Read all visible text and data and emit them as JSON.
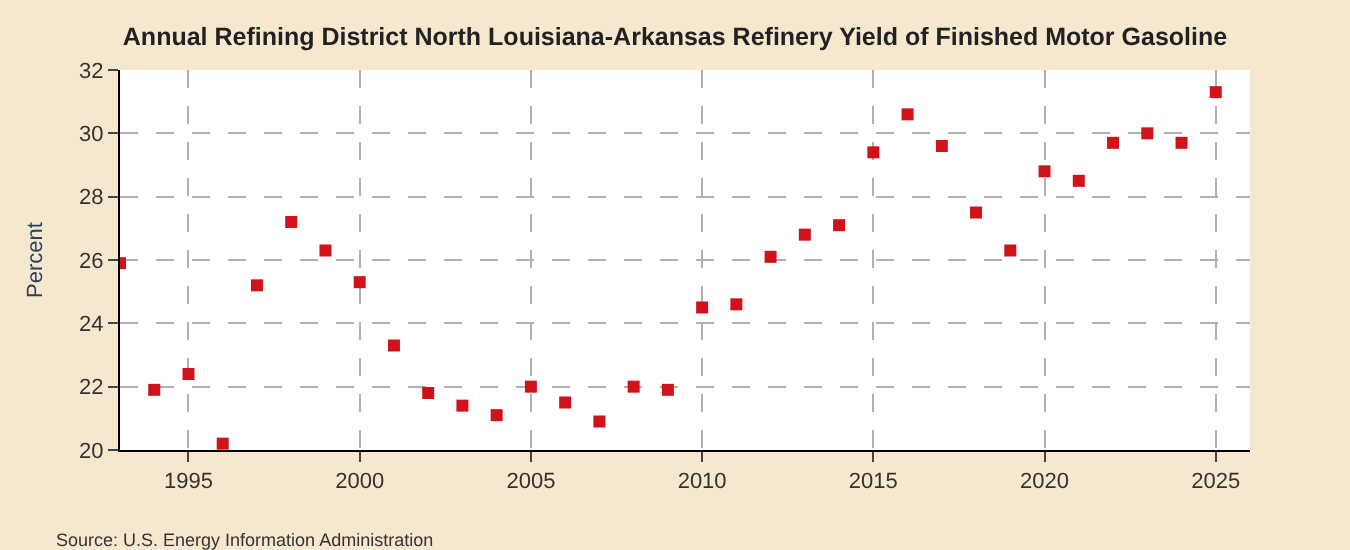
{
  "chart_data": {
    "type": "scatter",
    "title": "Annual Refining District North Louisiana-Arkansas Refinery Yield of Finished Motor Gasoline",
    "ylabel": "Percent",
    "x": [
      1993,
      1994,
      1995,
      1996,
      1997,
      1998,
      1999,
      2000,
      2001,
      2002,
      2003,
      2004,
      2005,
      2006,
      2007,
      2008,
      2009,
      2010,
      2011,
      2012,
      2013,
      2014,
      2015,
      2016,
      2017,
      2018,
      2019,
      2020,
      2021,
      2022,
      2023,
      2024,
      2025
    ],
    "series": [
      {
        "color": "#d0121b",
        "values": [
          25.9,
          21.9,
          22.4,
          20.2,
          25.2,
          27.2,
          26.3,
          25.3,
          23.3,
          21.8,
          21.4,
          21.1,
          22.0,
          21.5,
          20.9,
          22.0,
          21.9,
          24.5,
          24.6,
          26.1,
          26.8,
          27.1,
          29.4,
          30.6,
          29.6,
          27.5,
          26.3,
          28.8,
          28.5,
          29.7,
          30.0,
          29.7,
          31.3
        ]
      }
    ],
    "xlim": [
      1993,
      2026
    ],
    "xticks": [
      1995,
      2000,
      2005,
      2010,
      2015,
      2020,
      2025
    ],
    "ylim": [
      20,
      32
    ],
    "yticks": [
      20,
      22,
      24,
      26,
      28,
      30,
      32
    ],
    "grid": true,
    "marker": "square",
    "legend": false,
    "annotations": [
      "Source: U.S. Energy Information Administration"
    ]
  }
}
